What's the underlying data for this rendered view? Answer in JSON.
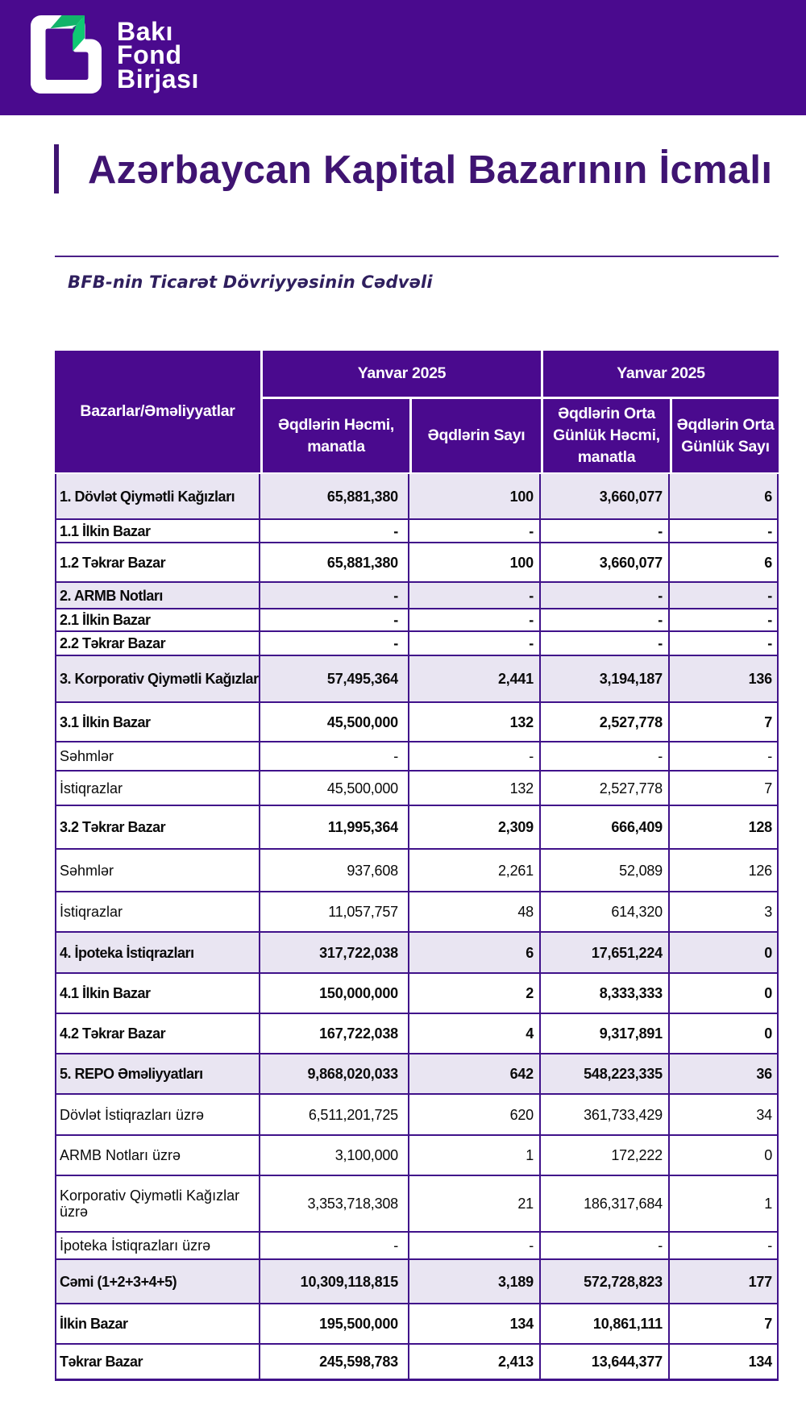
{
  "brand": {
    "logo_lines": [
      "Bakı",
      "Fond",
      "Birjası"
    ],
    "logo_icon": "bfb-folded-page-icon"
  },
  "page_title": "Azərbaycan Kapital Bazarının İcmalı",
  "section_subtitle": "BFB-nin Ticarət Dövriyyəsinin Cədvəli",
  "colors": {
    "header_band": "#4A0A8E",
    "table_header": "#4A0A8E",
    "table_border": "#40128A",
    "title_text": "#3F1472",
    "subtitle_text": "#2F1F5E",
    "section_row_bg": "#E9E5F2",
    "logo_green_dark": "#12B36A",
    "logo_green_bright": "#0FC873"
  },
  "table": {
    "corner_header": "Bazarlar/Əməliyyatlar",
    "group_headers": [
      "Yanvar 2025",
      "Yanvar 2025"
    ],
    "column_headers": [
      "Əqdlərin Həcmi, manatla",
      "Əqdlərin Sayı",
      "Əqdlərin Orta Günlük Həcmi, manatla",
      "Əqdlərin Orta Günlük Sayı"
    ],
    "rows": [
      {
        "kind": "section",
        "label": "1. Dövlət Qiymətli Kağızları",
        "values": [
          "65,881,380",
          "100",
          "3,660,077",
          "6"
        ]
      },
      {
        "kind": "sub",
        "label": "1.1 İlkin Bazar",
        "values": [
          "-",
          "-",
          "-",
          "-"
        ]
      },
      {
        "kind": "sub",
        "label": "1.2 Təkrar Bazar",
        "values": [
          "65,881,380",
          "100",
          "3,660,077",
          "6"
        ]
      },
      {
        "kind": "section",
        "label": "2. ARMB Notları",
        "values": [
          "-",
          "-",
          "-",
          "-"
        ]
      },
      {
        "kind": "sub",
        "label": "2.1 İlkin Bazar",
        "values": [
          "-",
          "-",
          "-",
          "-"
        ]
      },
      {
        "kind": "sub",
        "label": "2.2 Təkrar Bazar",
        "values": [
          "-",
          "-",
          "-",
          "-"
        ]
      },
      {
        "kind": "section",
        "label": "3. Korporativ Qiymətli Kağızlar",
        "values": [
          "57,495,364",
          "2,441",
          "3,194,187",
          "136"
        ]
      },
      {
        "kind": "sub",
        "label": "3.1 İlkin Bazar",
        "values": [
          "45,500,000",
          "132",
          "2,527,778",
          "7"
        ]
      },
      {
        "kind": "item",
        "label": "Səhmlər",
        "values": [
          "-",
          "-",
          "-",
          "-"
        ]
      },
      {
        "kind": "item",
        "label": "İstiqrazlar",
        "values": [
          "45,500,000",
          "132",
          "2,527,778",
          "7"
        ]
      },
      {
        "kind": "sub",
        "label": "3.2 Təkrar Bazar",
        "values": [
          "11,995,364",
          "2,309",
          "666,409",
          "128"
        ]
      },
      {
        "kind": "item",
        "label": "Səhmlər",
        "values": [
          "937,608",
          "2,261",
          "52,089",
          "126"
        ]
      },
      {
        "kind": "item",
        "label": "İstiqrazlar",
        "values": [
          "11,057,757",
          "48",
          "614,320",
          "3"
        ]
      },
      {
        "kind": "section",
        "label": "4. İpoteka İstiqrazları",
        "values": [
          "317,722,038",
          "6",
          "17,651,224",
          "0"
        ]
      },
      {
        "kind": "sub",
        "label": "4.1 İlkin Bazar",
        "values": [
          "150,000,000",
          "2",
          "8,333,333",
          "0"
        ]
      },
      {
        "kind": "sub",
        "label": "4.2 Təkrar Bazar",
        "values": [
          "167,722,038",
          "4",
          "9,317,891",
          "0"
        ]
      },
      {
        "kind": "section",
        "label": "5. REPO Əməliyyatları",
        "values": [
          "9,868,020,033",
          "642",
          "548,223,335",
          "36"
        ]
      },
      {
        "kind": "item",
        "label": "Dövlət İstiqrazları üzrə",
        "values": [
          "6,511,201,725",
          "620",
          "361,733,429",
          "34"
        ]
      },
      {
        "kind": "item",
        "label": "ARMB Notları üzrə",
        "values": [
          "3,100,000",
          "1",
          "172,222",
          "0"
        ]
      },
      {
        "kind": "item",
        "label": "Korporativ Qiymətli Kağızlar üzrə",
        "values": [
          "3,353,718,308",
          "21",
          "186,317,684",
          "1"
        ]
      },
      {
        "kind": "item",
        "label": "İpoteka İstiqrazları üzrə",
        "values": [
          "-",
          "-",
          "-",
          "-"
        ]
      },
      {
        "kind": "section",
        "label": "Cəmi (1+2+3+4+5)",
        "values": [
          "10,309,118,815",
          "3,189",
          "572,728,823",
          "177"
        ]
      },
      {
        "kind": "sub",
        "label": "İlkin Bazar",
        "values": [
          "195,500,000",
          "134",
          "10,861,111",
          "7"
        ]
      },
      {
        "kind": "sub",
        "label": "Təkrar Bazar",
        "values": [
          "245,598,783",
          "2,413",
          "13,644,377",
          "134"
        ]
      }
    ]
  }
}
